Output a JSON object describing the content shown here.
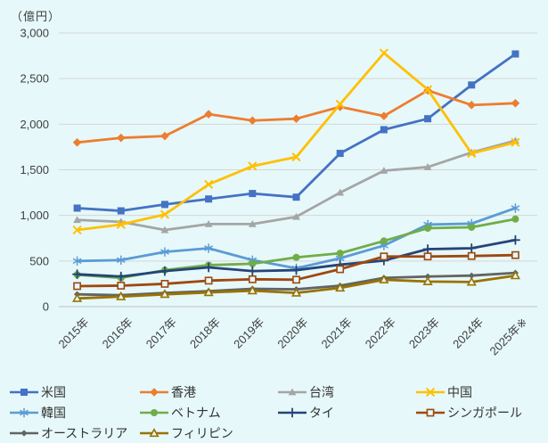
{
  "unit_label": "（億円）",
  "colors": {
    "background": "#e6f8f9",
    "gridline": "#d6d6d6",
    "axis_line": "#c0c0c0",
    "axis_text": "#3f3f3f",
    "legend_text": "#333333"
  },
  "chart_data": {
    "type": "line",
    "title": "",
    "xlabel": "",
    "ylabel": "（億円）",
    "ylim": [
      0,
      3000
    ],
    "grid": true,
    "legend_position": "bottom",
    "yticks": [
      {
        "value": 0,
        "label": "0"
      },
      {
        "value": 500,
        "label": "500"
      },
      {
        "value": 1000,
        "label": "1,000"
      },
      {
        "value": 1500,
        "label": "1,500"
      },
      {
        "value": 2000,
        "label": "2,000"
      },
      {
        "value": 2500,
        "label": "2,500"
      },
      {
        "value": 3000,
        "label": "3,000"
      }
    ],
    "categories": [
      "2015年",
      "2016年",
      "2017年",
      "2018年",
      "2019年",
      "2020年",
      "2021年",
      "2022年",
      "2023年",
      "2024年",
      "2025年※"
    ],
    "series": [
      {
        "id": "usa",
        "name": "米国",
        "color": "#4472C4",
        "marker": "square",
        "values": [
          1080,
          1050,
          1120,
          1180,
          1240,
          1200,
          1680,
          1940,
          2060,
          2430,
          2770
        ]
      },
      {
        "id": "hongkong",
        "name": "香港",
        "color": "#ED7D31",
        "marker": "diamond",
        "values": [
          1800,
          1850,
          1870,
          2110,
          2040,
          2060,
          2190,
          2090,
          2370,
          2210,
          2230
        ]
      },
      {
        "id": "taiwan",
        "name": "台湾",
        "color": "#A5A5A5",
        "marker": "triangle",
        "values": [
          950,
          930,
          840,
          905,
          905,
          985,
          1250,
          1490,
          1530,
          1690,
          1820
        ]
      },
      {
        "id": "china",
        "name": "中国",
        "color": "#FFC000",
        "marker": "x",
        "values": [
          840,
          900,
          1010,
          1340,
          1540,
          1640,
          2220,
          2780,
          2380,
          1680,
          1800
        ]
      },
      {
        "id": "korea",
        "name": "韓国",
        "color": "#5B9BD5",
        "marker": "asterisk",
        "values": [
          500,
          510,
          600,
          640,
          510,
          420,
          530,
          670,
          900,
          910,
          1080
        ]
      },
      {
        "id": "vietnam",
        "name": "ベトナム",
        "color": "#70AD47",
        "marker": "circle",
        "values": [
          350,
          315,
          400,
          455,
          470,
          540,
          585,
          720,
          860,
          870,
          960
        ]
      },
      {
        "id": "thailand",
        "name": "タイ",
        "color": "#264478",
        "marker": "plus",
        "values": [
          355,
          330,
          390,
          430,
          390,
          400,
          460,
          505,
          630,
          640,
          730
        ]
      },
      {
        "id": "singapore",
        "name": "シンガポール",
        "color": "#9E480E",
        "marker": "square-open",
        "values": [
          225,
          230,
          250,
          285,
          300,
          295,
          410,
          550,
          550,
          555,
          565
        ]
      },
      {
        "id": "australia",
        "name": "オーストラリア",
        "color": "#636363",
        "marker": "diamond-small",
        "values": [
          135,
          125,
          150,
          170,
          195,
          190,
          230,
          315,
          330,
          340,
          370
        ]
      },
      {
        "id": "philippines",
        "name": "フィリピン",
        "color": "#997300",
        "marker": "triangle-open",
        "values": [
          90,
          110,
          135,
          155,
          175,
          150,
          205,
          295,
          275,
          270,
          340
        ]
      }
    ]
  }
}
